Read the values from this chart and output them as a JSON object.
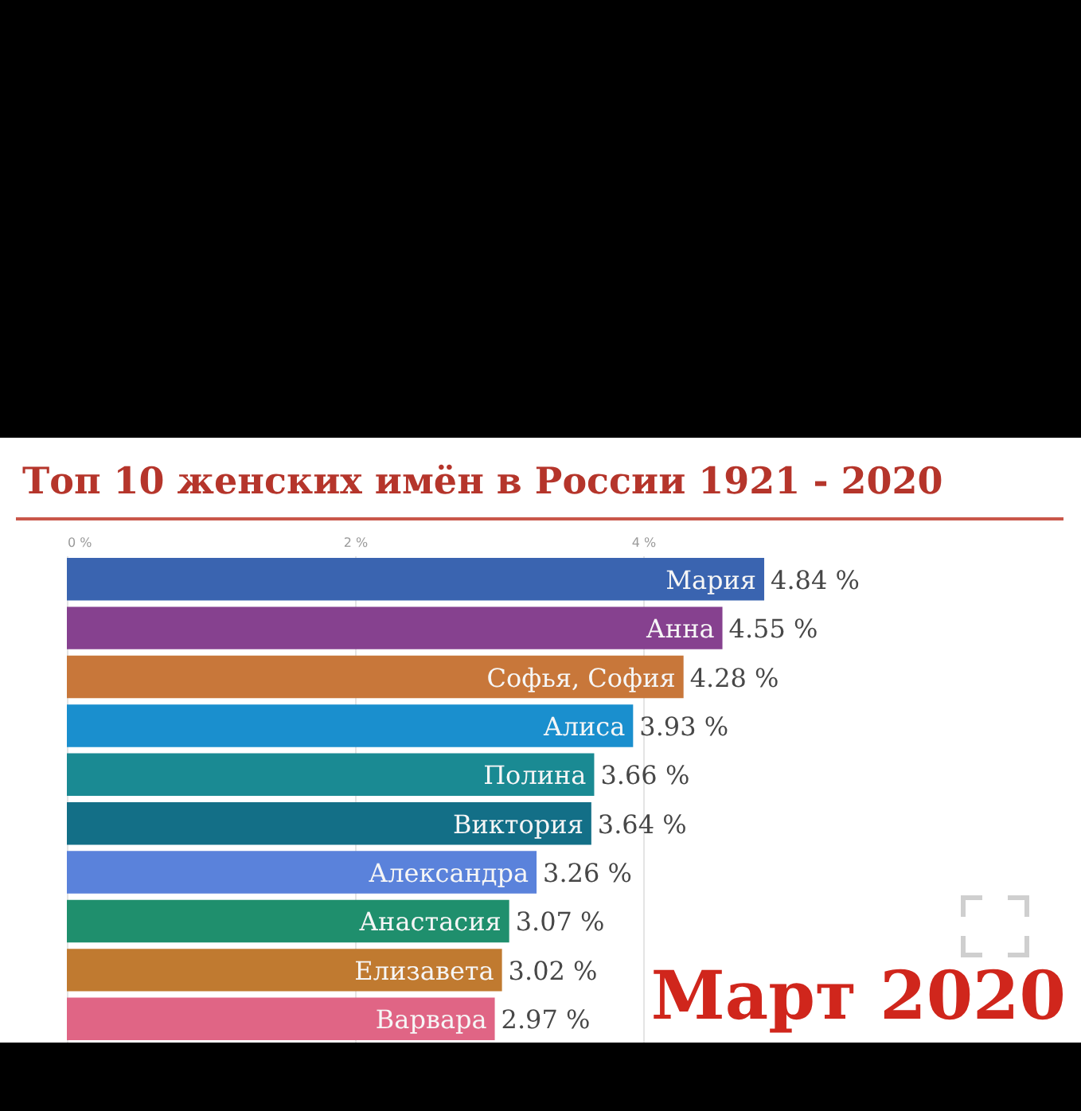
{
  "chart_data": {
    "type": "bar",
    "orientation": "horizontal",
    "title": "Топ 10 женских имён в России 1921 - 2020",
    "categories": [
      "Мария",
      "Анна",
      "Софья, София",
      "Алиса",
      "Полина",
      "Виктория",
      "Александра",
      "Анастасия",
      "Елизавета",
      "Варвара"
    ],
    "values": [
      4.84,
      4.55,
      4.28,
      3.93,
      3.66,
      3.64,
      3.26,
      3.07,
      3.02,
      2.97
    ],
    "colors": [
      "#3a64b0",
      "#86418f",
      "#c8773a",
      "#1a8fce",
      "#1a8a93",
      "#136f87",
      "#5a82db",
      "#1f8f6d",
      "#c07a30",
      "#e06585"
    ],
    "value_labels": [
      "4.84 %",
      "4.55 %",
      "4.28 %",
      "3.93 %",
      "3.66 %",
      "3.64 %",
      "3.26 %",
      "3.07 %",
      "3.02 %",
      "2.97 %"
    ],
    "xlim": [
      0,
      7
    ],
    "xticks": [
      {
        "value": 0,
        "label": "0 %"
      },
      {
        "value": 2,
        "label": "2 %"
      },
      {
        "value": 4,
        "label": "4 %"
      }
    ],
    "grid": "x",
    "annotations": [
      "Март 2020"
    ]
  }
}
